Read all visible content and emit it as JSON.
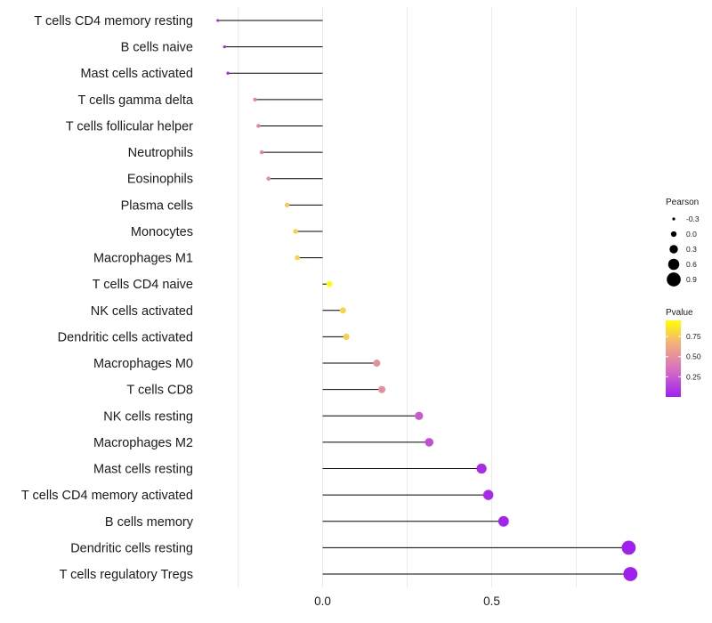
{
  "chart_data": {
    "type": "lollipop",
    "title": "",
    "xlabel": "",
    "ylabel": "",
    "x_ticks": [
      0.0,
      0.5
    ],
    "x_tick_labels": [
      "0.0",
      "0.5"
    ],
    "xlim": [
      -0.37,
      0.98
    ],
    "grid": true,
    "categories": [
      "T cells CD4 memory resting",
      "B cells naive",
      "Mast cells activated",
      "T cells gamma delta",
      "T cells follicular helper",
      "Neutrophils",
      "Eosinophils",
      "Plasma cells",
      "Monocytes",
      "Macrophages M1",
      "T cells CD4 naive",
      "NK cells activated",
      "Dendritic cells activated",
      "Macrophages M0",
      "T cells CD8",
      "NK cells resting",
      "Macrophages M2",
      "Mast cells resting",
      "T cells CD4 memory activated",
      "B cells memory",
      "Dendritic cells resting",
      "T cells regulatory  Tregs"
    ],
    "pearson": [
      -0.31,
      -0.29,
      -0.28,
      -0.2,
      -0.19,
      -0.18,
      -0.16,
      -0.105,
      -0.08,
      -0.075,
      0.02,
      0.06,
      0.07,
      0.16,
      0.175,
      0.285,
      0.315,
      0.47,
      0.49,
      0.535,
      0.905,
      0.91
    ],
    "pvalue": [
      0.02,
      0.05,
      0.07,
      0.45,
      0.45,
      0.45,
      0.5,
      0.75,
      0.78,
      0.8,
      0.95,
      0.8,
      0.78,
      0.5,
      0.5,
      0.25,
      0.2,
      0.05,
      0.04,
      0.02,
      0.0,
      0.0
    ],
    "legend_size": {
      "title": "Pearson",
      "entries": [
        "-0.3",
        "0.0",
        "0.3",
        "0.6",
        "0.9"
      ],
      "values": [
        -0.3,
        0.0,
        0.3,
        0.6,
        0.9
      ]
    },
    "legend_color": {
      "title": "Pvalue",
      "tick_labels": [
        "0.75",
        "0.50",
        "0.25"
      ],
      "tick_values": [
        0.75,
        0.5,
        0.25
      ],
      "range": [
        0.0,
        0.95
      ],
      "colors": [
        "#a020f0",
        "#d46ac5",
        "#f3b07a",
        "#ffff00"
      ]
    }
  }
}
